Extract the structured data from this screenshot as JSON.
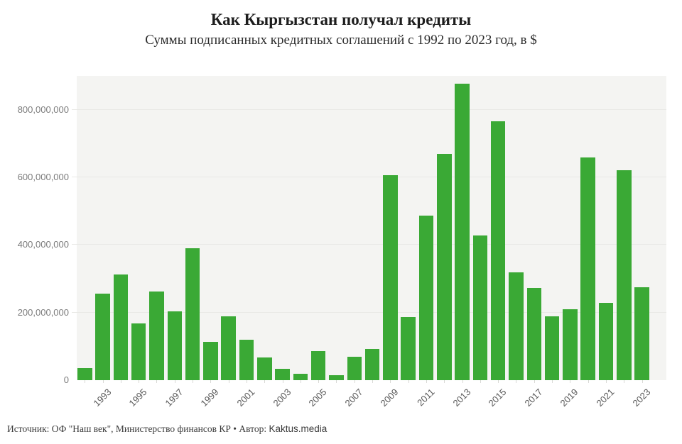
{
  "page": {
    "title": "Как Кыргызстан получал кредиты",
    "subtitle": "Суммы подписанных кредитных соглашений с 1992 по 2023 год, в $",
    "footer_source": "Источник: ОФ \"Наш век\", Министерство финансов КР • Автор: ",
    "footer_brand": "Kaktus.media"
  },
  "colors": {
    "bar": "#3aa935",
    "plot_background": "#f4f4f2",
    "gridline": "#e9e9e6",
    "axis_label": "#7b7b7b"
  },
  "chart_data": {
    "type": "bar",
    "title": "Как Кыргызстан получал кредиты",
    "subtitle": "Суммы подписанных кредитных соглашений с 1992 по 2023 год, в $",
    "xlabel": "",
    "ylabel": "",
    "ylim": [
      0,
      900000000
    ],
    "grid": true,
    "legend": false,
    "bar_color": "#3aa935",
    "yticks": [
      0,
      200000000,
      400000000,
      600000000,
      800000000
    ],
    "ytick_labels": [
      "0",
      "200,000,000",
      "400,000,000",
      "600,000,000",
      "800,000,000"
    ],
    "xtick_labels": [
      "1993",
      "1995",
      "1997",
      "1999",
      "2001",
      "2003",
      "2005",
      "2007",
      "2009",
      "2011",
      "2013",
      "2015",
      "2017",
      "2019",
      "2021",
      "2023"
    ],
    "categories": [
      1992,
      1993,
      1994,
      1995,
      1996,
      1997,
      1998,
      1999,
      2000,
      2001,
      2002,
      2003,
      2004,
      2005,
      2006,
      2007,
      2008,
      2009,
      2010,
      2011,
      2012,
      2013,
      2014,
      2015,
      2016,
      2017,
      2018,
      2019,
      2020,
      2021,
      2022,
      2023
    ],
    "values": [
      35000000,
      255000000,
      312000000,
      168000000,
      262000000,
      204000000,
      390000000,
      114000000,
      188000000,
      119000000,
      68000000,
      33000000,
      18000000,
      87000000,
      14000000,
      70000000,
      93000000,
      607000000,
      186000000,
      487000000,
      670000000,
      876000000,
      428000000,
      765000000,
      318000000,
      272000000,
      188000000,
      209000000,
      659000000,
      229000000,
      620000000,
      274000000
    ]
  }
}
